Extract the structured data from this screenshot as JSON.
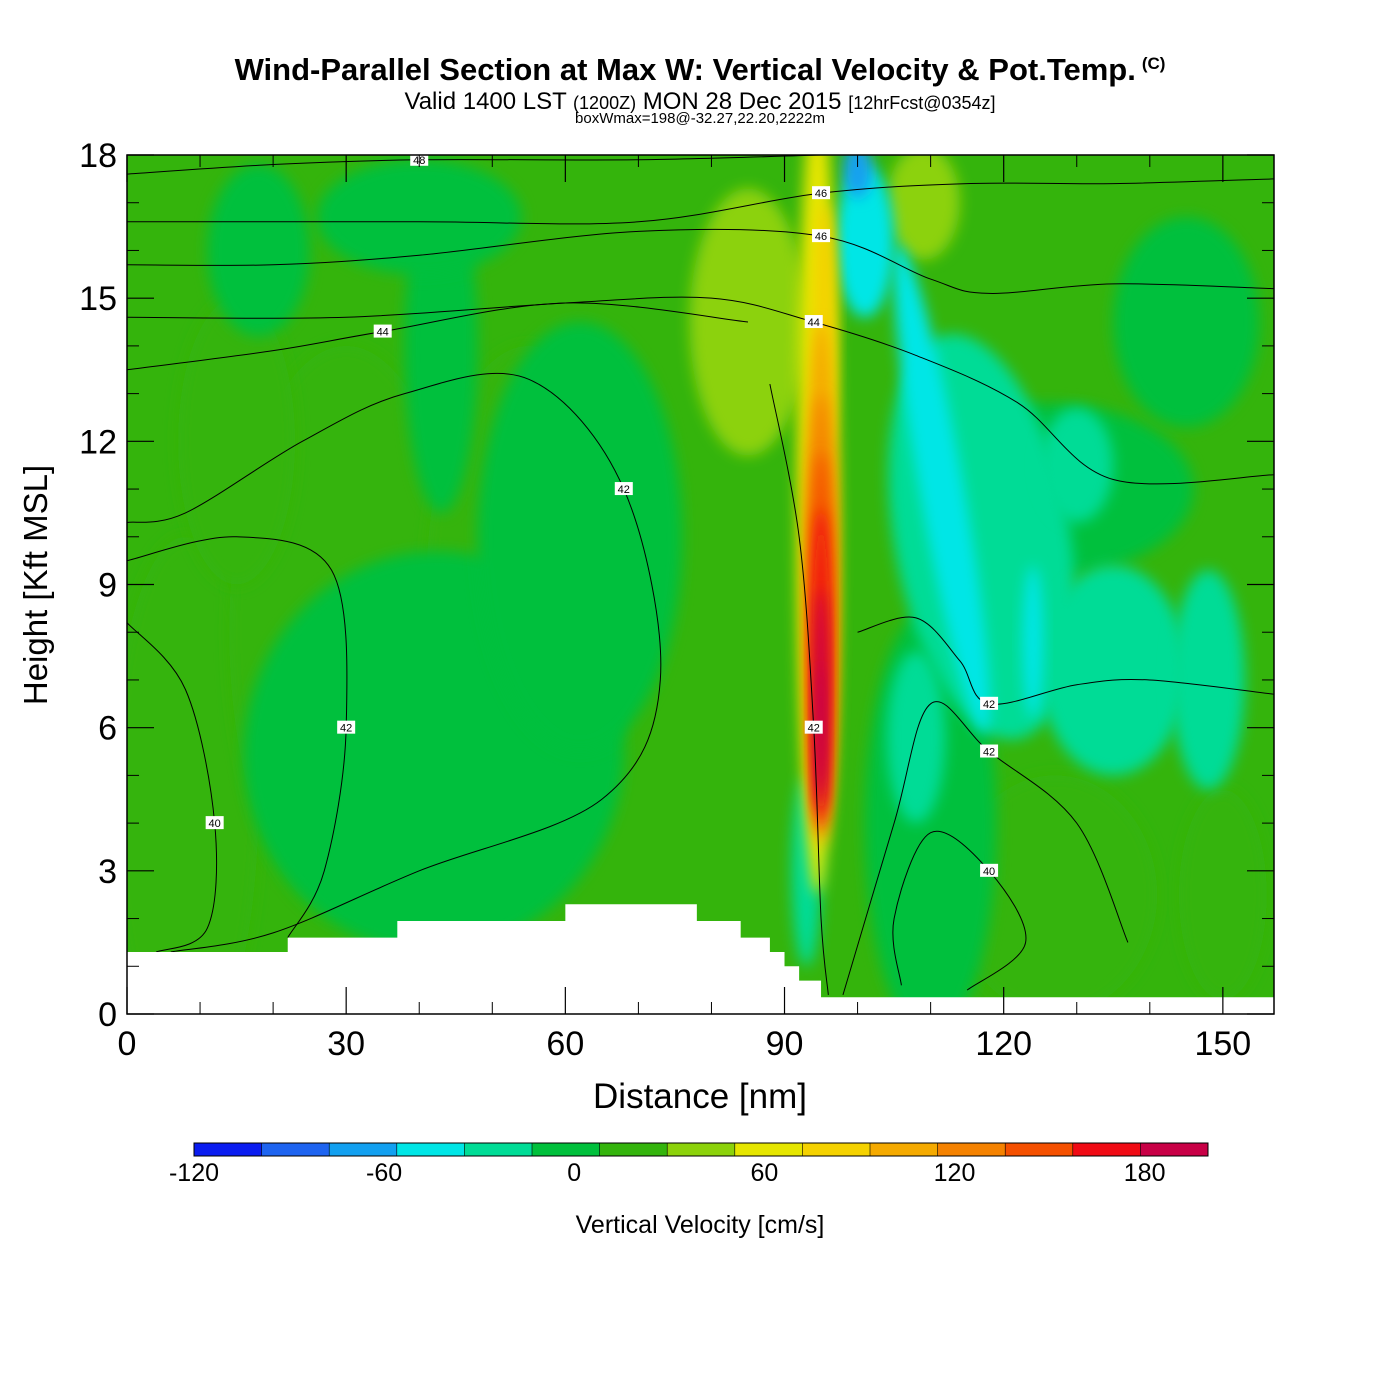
{
  "header": {
    "title": "Wind-Parallel Section at Max W: Vertical Velocity & Pot.Temp.",
    "title_tag": "(C)",
    "valid_main": "Valid 1400 LST",
    "valid_utc": "(1200Z)",
    "valid_date": "MON 28 Dec 2015",
    "forecast": "[12hrFcst@0354z]",
    "box_info": "boxWmax=198@-32.27,22.20,2222m"
  },
  "chart_data": {
    "type": "heatmap",
    "xlabel": "Distance [nm]",
    "ylabel": "Height [Kft MSL]",
    "xlim": [
      0,
      157
    ],
    "ylim": [
      0,
      18
    ],
    "x_ticks": [
      0,
      30,
      60,
      90,
      120,
      150
    ],
    "y_ticks": [
      0,
      3,
      6,
      9,
      12,
      15,
      18
    ],
    "colorbar": {
      "label": "Vertical Velocity [cm/s]",
      "range": [
        -120,
        200
      ],
      "step": 20,
      "tick_labels": [
        -120,
        -60,
        0,
        60,
        120,
        180
      ],
      "colors": [
        "#0a1cf0",
        "#1e64f0",
        "#12a0f0",
        "#00e6e6",
        "#00dc96",
        "#00c03c",
        "#34b40c",
        "#8cd20a",
        "#e6e600",
        "#f5d200",
        "#f5aa00",
        "#f58200",
        "#f55000",
        "#f00a14",
        "#c80046"
      ]
    },
    "background_w": 5,
    "terrain_height_kft": [
      [
        0,
        1.3
      ],
      [
        9,
        1.3
      ],
      [
        22,
        1.6
      ],
      [
        37,
        1.95
      ],
      [
        60,
        2.3
      ],
      [
        78,
        1.95
      ],
      [
        84,
        1.6
      ],
      [
        88,
        1.3
      ],
      [
        90,
        1.0
      ],
      [
        92,
        0.7
      ],
      [
        95,
        0.35
      ],
      [
        157,
        0.35
      ]
    ],
    "updraft_core": {
      "x": 95,
      "y": 7,
      "w_max": 198
    },
    "theta_contours": [
      {
        "level": 48,
        "points": [
          [
            0,
            17.6
          ],
          [
            20,
            17.8
          ],
          [
            40,
            17.9
          ],
          [
            70,
            17.9
          ],
          [
            95,
            18.0
          ]
        ]
      },
      {
        "level": 46,
        "points": [
          [
            0,
            16.6
          ],
          [
            40,
            16.6
          ],
          [
            70,
            16.6
          ],
          [
            95,
            17.2
          ],
          [
            115,
            17.4
          ],
          [
            135,
            17.4
          ],
          [
            157,
            17.5
          ]
        ]
      },
      {
        "level": 46,
        "points": [
          [
            0,
            15.7
          ],
          [
            20,
            15.7
          ],
          [
            40,
            15.9
          ],
          [
            70,
            16.4
          ],
          [
            95,
            16.3
          ],
          [
            110,
            15.4
          ],
          [
            118,
            15.1
          ],
          [
            135,
            15.3
          ],
          [
            157,
            15.2
          ]
        ]
      },
      {
        "level": 44,
        "points": [
          [
            0,
            14.6
          ],
          [
            30,
            14.6
          ],
          [
            60,
            14.9
          ],
          [
            80,
            15.0
          ],
          [
            94,
            14.5
          ],
          [
            108,
            13.8
          ],
          [
            122,
            12.8
          ],
          [
            135,
            11.2
          ],
          [
            157,
            11.3
          ]
        ]
      },
      {
        "level": 44,
        "points": [
          [
            0,
            13.5
          ],
          [
            20,
            13.9
          ],
          [
            35,
            14.3
          ],
          [
            60,
            14.9
          ],
          [
            85,
            14.5
          ]
        ]
      },
      {
        "level": 42,
        "points": [
          [
            0,
            9.5
          ],
          [
            15,
            10.0
          ],
          [
            28,
            9.3
          ],
          [
            30,
            6.0
          ],
          [
            27,
            3.0
          ],
          [
            22,
            1.6
          ]
        ]
      },
      {
        "level": 42,
        "points": [
          [
            6,
            1.3
          ],
          [
            20,
            1.7
          ],
          [
            40,
            3.0
          ],
          [
            65,
            4.5
          ],
          [
            73,
            7.0
          ],
          [
            68,
            11.0
          ],
          [
            55,
            13.3
          ],
          [
            38,
            13.0
          ],
          [
            24,
            12.0
          ],
          [
            8,
            10.5
          ],
          [
            0,
            10.3
          ]
        ]
      },
      {
        "level": 42,
        "points": [
          [
            88,
            13.2
          ],
          [
            92,
            10.0
          ],
          [
            94,
            6.0
          ],
          [
            95,
            2.0
          ],
          [
            96,
            0.4
          ]
        ]
      },
      {
        "level": 42,
        "points": [
          [
            100,
            8.0
          ],
          [
            108,
            8.3
          ],
          [
            114,
            7.4
          ],
          [
            118,
            6.5
          ],
          [
            130,
            6.9
          ],
          [
            140,
            7.0
          ],
          [
            157,
            6.7
          ]
        ]
      },
      {
        "level": 42,
        "points": [
          [
            98,
            0.4
          ],
          [
            105,
            4.0
          ],
          [
            110,
            6.5
          ],
          [
            118,
            5.5
          ],
          [
            130,
            4.0
          ],
          [
            137,
            1.5
          ]
        ]
      },
      {
        "level": 40,
        "points": [
          [
            106,
            0.6
          ],
          [
            105,
            2.0
          ],
          [
            110,
            3.8
          ],
          [
            118,
            3.0
          ],
          [
            123,
            1.5
          ],
          [
            115,
            0.5
          ]
        ]
      },
      {
        "level": 40,
        "points": [
          [
            0,
            8.2
          ],
          [
            8,
            6.8
          ],
          [
            12,
            4.0
          ],
          [
            11,
            1.8
          ],
          [
            4,
            1.3
          ]
        ]
      }
    ]
  }
}
